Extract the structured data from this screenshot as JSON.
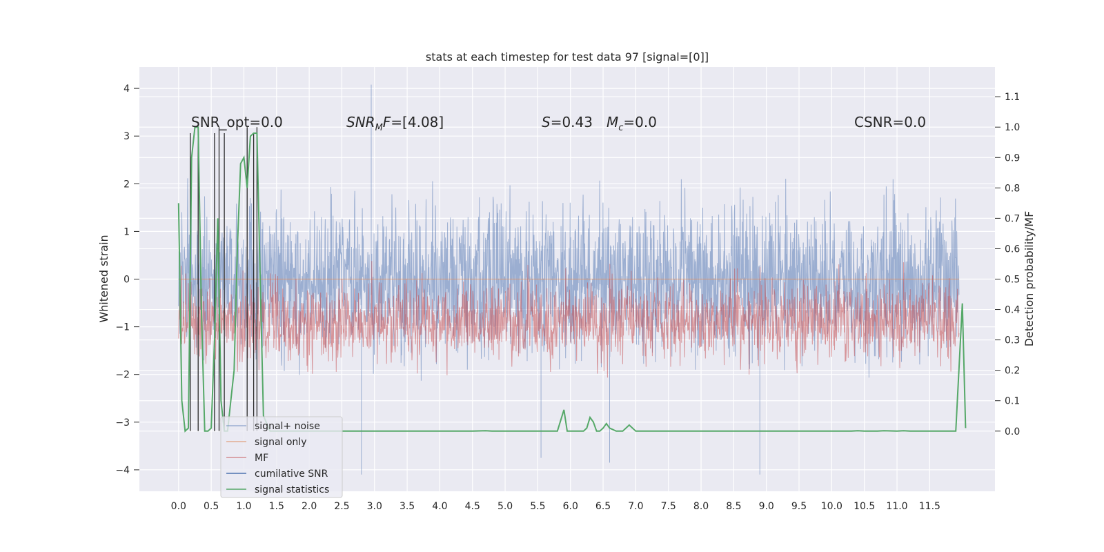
{
  "chart_data": {
    "type": "line",
    "title": "stats at each timestep for test data 97 [signal=[0]]",
    "ylabel_left": "Whitened strain",
    "ylabel_right": "Detection probability/MF",
    "xlim": [
      -0.6,
      12.5
    ],
    "ylim_left": [
      -4.45,
      4.45
    ],
    "ylim_right": [
      -0.198,
      1.198
    ],
    "x_ticks": [
      "0.0",
      "0.5",
      "1.0",
      "1.5",
      "2.0",
      "2.5",
      "3.0",
      "3.5",
      "4.0",
      "4.5",
      "5.0",
      "5.5",
      "6.0",
      "6.5",
      "7.0",
      "7.5",
      "8.0",
      "8.5",
      "9.0",
      "9.5",
      "10.0",
      "10.5",
      "11.0",
      "11.5"
    ],
    "y_ticks_left": [
      4,
      3,
      2,
      1,
      0,
      -1,
      -2,
      -3,
      -4
    ],
    "y_tick_labels_left": [
      "4",
      "3",
      "2",
      "1",
      "0",
      "−1",
      "−2",
      "−3",
      "−4"
    ],
    "y_ticks_right": [
      "1.1",
      "1.0",
      "0.9",
      "0.8",
      "0.7",
      "0.6",
      "0.5",
      "0.4",
      "0.3",
      "0.2",
      "0.1",
      "0.0"
    ],
    "grid": true,
    "legend_position": "lower-left",
    "annotations": {
      "snr_opt": "SNR_opt=0.0",
      "snr_mf_main": "SNR",
      "snr_mf_sub": "M",
      "snr_mf_mid": "F",
      "snr_mf_val": "=[4.08]",
      "s_main": "S",
      "s_val": "=0.43",
      "mc_main": "M",
      "mc_sub": "c",
      "mc_val": "=0.0",
      "csnr": "CSNR=0.0"
    },
    "series": [
      {
        "name": "signal+ noise",
        "color": "#4c72b0",
        "kind": "dense noise, x 0.0–11.95, mostly within ±2.5 whitened strain, peaks near 4.08 at x≈2.95 and −4.1 at x≈2.8 and 8.9"
      },
      {
        "name": "signal only",
        "color": "#dd8452",
        "kind": "flat at 0"
      },
      {
        "name": "MF",
        "color": "#c44e52",
        "kind": "dense band between ~0.1 and ~0.6 detection probability/MF"
      },
      {
        "name": "cumilative SNR",
        "color": "#4c72b0",
        "kind": "flat"
      },
      {
        "name": "signal statistics",
        "color": "#55a868",
        "x": [
          0.0,
          0.05,
          0.1,
          0.15,
          0.2,
          0.25,
          0.3,
          0.35,
          0.4,
          0.45,
          0.5,
          0.55,
          0.6,
          0.65,
          0.7,
          0.75,
          0.8,
          0.85,
          0.9,
          0.95,
          1.0,
          1.05,
          1.1,
          1.15,
          1.2,
          1.25,
          1.3,
          1.4,
          1.6,
          1.8,
          2.0,
          2.2,
          2.4,
          2.6,
          2.8,
          3.0,
          3.5,
          4.0,
          4.5,
          4.7,
          4.8,
          5.0,
          5.5,
          5.8,
          5.9,
          5.95,
          6.0,
          6.2,
          6.25,
          6.3,
          6.35,
          6.4,
          6.45,
          6.5,
          6.55,
          6.6,
          6.7,
          6.8,
          6.9,
          7.0,
          7.05,
          7.1,
          7.5,
          8.0,
          8.5,
          9.0,
          9.5,
          10.0,
          10.3,
          10.4,
          10.5,
          10.7,
          10.8,
          11.0,
          11.1,
          11.2,
          11.4,
          11.6,
          11.8,
          11.9,
          12.0,
          12.05
        ],
        "y": [
          0.75,
          0.1,
          0.0,
          0.01,
          0.9,
          1.0,
          1.0,
          0.4,
          0.0,
          0.0,
          0.01,
          0.3,
          0.7,
          0.1,
          0.0,
          0.0,
          0.1,
          0.2,
          0.6,
          0.88,
          0.9,
          0.8,
          0.97,
          0.98,
          0.98,
          0.5,
          0.05,
          0.0,
          0.0,
          0.0,
          0.0,
          0.0,
          0.0,
          0.0,
          0.0,
          0.0,
          0.0,
          0.0,
          0.0,
          0.001,
          0.0,
          0.0,
          0.0,
          0.0,
          0.07,
          0.0,
          0.0,
          0.0,
          0.01,
          0.045,
          0.03,
          0.0,
          0.0,
          0.01,
          0.025,
          0.01,
          0.0,
          0.0,
          0.02,
          0.0,
          0.0,
          0.0,
          0.0,
          0.0,
          0.0,
          0.0,
          0.0,
          0.0,
          0.0,
          0.001,
          0.0,
          0.0,
          0.001,
          0.0,
          0.001,
          0.0,
          0.0,
          0.0,
          0.0,
          0.0,
          0.42,
          0.01
        ]
      }
    ]
  }
}
